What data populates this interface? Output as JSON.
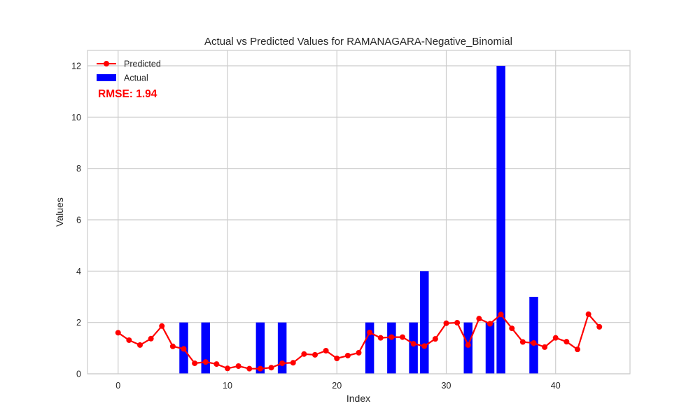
{
  "chart_data": {
    "type": "bar+line",
    "title": "Actual vs Predicted Values for RAMANAGARA-Negative_Binomial",
    "xlabel": "Index",
    "ylabel": "Values",
    "xlim": [
      -2.8,
      46.8
    ],
    "ylim": [
      0,
      12.6
    ],
    "x_ticks": [
      0,
      10,
      20,
      30,
      40
    ],
    "y_ticks": [
      0,
      2,
      4,
      6,
      8,
      10,
      12
    ],
    "grid": true,
    "legend_position": "upper-left",
    "annotation": "RMSE: 1.94",
    "annotation_color": "#ff0000",
    "series": [
      {
        "name": "Predicted",
        "kind": "line",
        "color": "#ff0000",
        "marker": "circle",
        "x": [
          0,
          1,
          2,
          3,
          4,
          5,
          6,
          7,
          8,
          9,
          10,
          11,
          12,
          13,
          14,
          15,
          16,
          17,
          18,
          19,
          20,
          21,
          22,
          23,
          24,
          25,
          26,
          27,
          28,
          29,
          30,
          31,
          32,
          33,
          34,
          35,
          36,
          37,
          38,
          39,
          40,
          41,
          42,
          43,
          44
        ],
        "values": [
          1.6,
          1.31,
          1.12,
          1.37,
          1.86,
          1.07,
          0.97,
          0.41,
          0.46,
          0.38,
          0.21,
          0.3,
          0.2,
          0.2,
          0.24,
          0.41,
          0.43,
          0.77,
          0.74,
          0.9,
          0.6,
          0.71,
          0.82,
          1.61,
          1.4,
          1.43,
          1.43,
          1.17,
          1.08,
          1.36,
          1.97,
          1.99,
          1.12,
          2.15,
          1.95,
          2.31,
          1.77,
          1.24,
          1.2,
          1.04,
          1.4,
          1.25,
          0.95,
          2.32,
          1.83
        ]
      },
      {
        "name": "Actual",
        "kind": "bar",
        "color": "#0000ff",
        "x": [
          0,
          1,
          2,
          3,
          4,
          5,
          6,
          7,
          8,
          9,
          10,
          11,
          12,
          13,
          14,
          15,
          16,
          17,
          18,
          19,
          20,
          21,
          22,
          23,
          24,
          25,
          26,
          27,
          28,
          29,
          30,
          31,
          32,
          33,
          34,
          35,
          36,
          37,
          38,
          39,
          40,
          41,
          42,
          43,
          44
        ],
        "values": [
          0,
          0,
          0,
          0,
          0,
          0,
          2,
          0,
          2,
          0,
          0,
          0,
          0,
          2,
          0,
          2,
          0,
          0,
          0,
          0,
          0,
          0,
          0,
          2,
          0,
          2,
          0,
          2,
          4,
          0,
          0,
          0,
          2,
          0,
          2,
          12,
          0,
          0,
          3,
          0,
          0,
          0,
          0,
          0,
          0
        ]
      }
    ]
  }
}
